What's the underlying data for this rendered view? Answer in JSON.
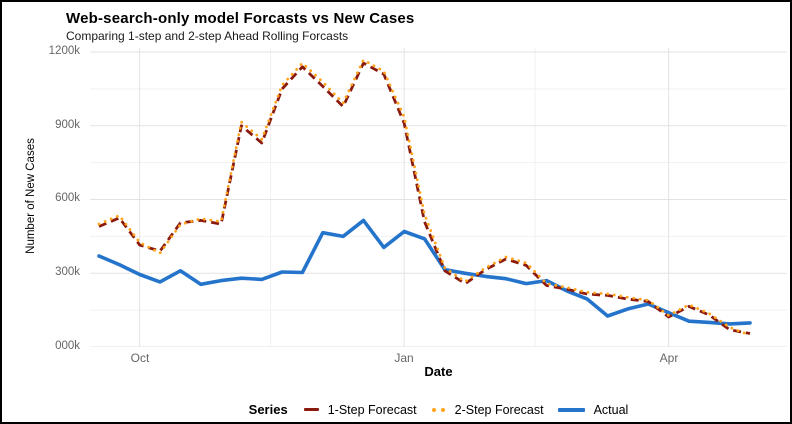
{
  "chart_data": {
    "type": "line",
    "title": "Web-search-only model Forcasts vs New Cases",
    "subtitle": "Comparing 1-step and 2-step Ahead Rolling Forcasts",
    "xlabel": "Date",
    "ylabel": "Number of New Cases",
    "legend_title": "Series",
    "legend_position": "bottom",
    "grid": true,
    "y_unit": "thousands of cases",
    "ylim": [
      0,
      1200
    ],
    "y_tick_values": [
      0,
      300,
      600,
      900,
      1200
    ],
    "y_tick_labels": [
      "000k",
      "300k",
      "600k",
      "900k",
      "1200k"
    ],
    "y_minor_tick_values": [
      150,
      450,
      750,
      1050
    ],
    "x": [
      "Sep 18",
      "Sep 25",
      "Oct 02",
      "Oct 09",
      "Oct 16",
      "Oct 23",
      "Oct 30",
      "Nov 06",
      "Nov 13",
      "Nov 20",
      "Nov 27",
      "Dec 04",
      "Dec 11",
      "Dec 18",
      "Dec 25",
      "Jan 01",
      "Jan 08",
      "Jan 15",
      "Jan 22",
      "Jan 29",
      "Feb 05",
      "Feb 12",
      "Feb 19",
      "Feb 26",
      "Mar 05",
      "Mar 12",
      "Mar 19",
      "Mar 26",
      "Apr 02",
      "Apr 09",
      "Apr 16",
      "Apr 23",
      "Apr 30"
    ],
    "x_tick_labels": [
      "Oct",
      "Jan",
      "Apr"
    ],
    "x_tick_indices": [
      2,
      15,
      28
    ],
    "x_minor_tick_indices": [
      8.43,
      21.43
    ],
    "colors": {
      "grid_major": "#e3e3e3",
      "grid_minor": "#f1f1f1",
      "tick_text": "#666666"
    },
    "series": [
      {
        "name": "1-Step Forecast",
        "color": "#8b1a0e",
        "style": "dashed",
        "values": [
          490,
          525,
          415,
          390,
          505,
          515,
          500,
          900,
          830,
          1050,
          1140,
          1060,
          978,
          1155,
          1110,
          910,
          510,
          310,
          258,
          315,
          358,
          332,
          250,
          235,
          215,
          210,
          195,
          185,
          122,
          165,
          130,
          70,
          55
        ]
      },
      {
        "name": "2-Step Forecast",
        "color": "#ffa41b",
        "style": "dotted",
        "values": [
          500,
          535,
          425,
          382,
          498,
          522,
          510,
          915,
          845,
          1065,
          1155,
          1078,
          992,
          1168,
          1122,
          935,
          540,
          322,
          266,
          322,
          366,
          342,
          258,
          242,
          222,
          216,
          202,
          190,
          128,
          172,
          136,
          80,
          48
        ]
      },
      {
        "name": "Actual",
        "color": "#2574cb",
        "style": "solid",
        "values": [
          370,
          335,
          295,
          265,
          310,
          255,
          270,
          280,
          275,
          305,
          303,
          465,
          450,
          515,
          405,
          470,
          440,
          315,
          300,
          287,
          278,
          258,
          270,
          228,
          195,
          126,
          155,
          175,
          140,
          105,
          100,
          94,
          98
        ]
      }
    ]
  }
}
